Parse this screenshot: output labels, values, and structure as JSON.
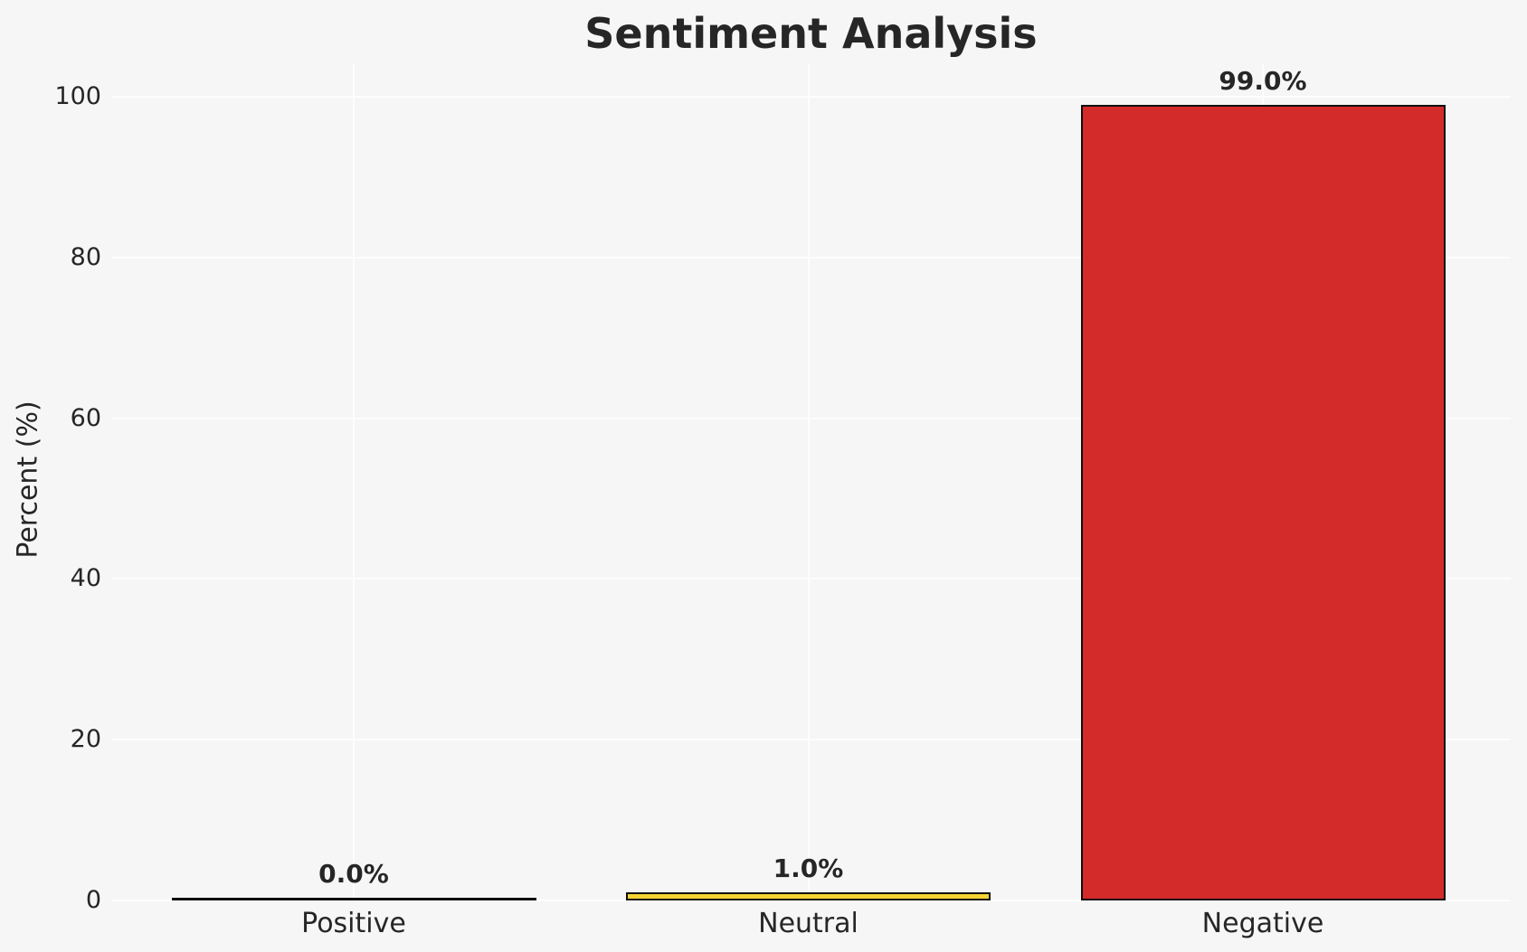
{
  "figure": {
    "background_color": "#f6f6f6",
    "gridline_color": "#fdfdfd",
    "text_color": "#262626",
    "bar_edge_color": "#0f0f0f"
  },
  "chart_data": {
    "type": "bar",
    "title": "Sentiment Analysis",
    "xlabel": "",
    "ylabel": "Percent (%)",
    "categories": [
      "Positive",
      "Neutral",
      "Negative"
    ],
    "values": [
      0.0,
      1.0,
      99.0
    ],
    "value_labels": [
      "0.0%",
      "1.0%",
      "99.0%"
    ],
    "bar_colors": [
      null,
      "#f5d334",
      "#d32a2a"
    ],
    "ytick_labels": [
      "0",
      "20",
      "40",
      "60",
      "80",
      "100"
    ],
    "ytick_values": [
      0,
      20,
      40,
      60,
      80,
      100
    ],
    "ylim": [
      0,
      104
    ],
    "grid": true,
    "legend_position": null
  }
}
